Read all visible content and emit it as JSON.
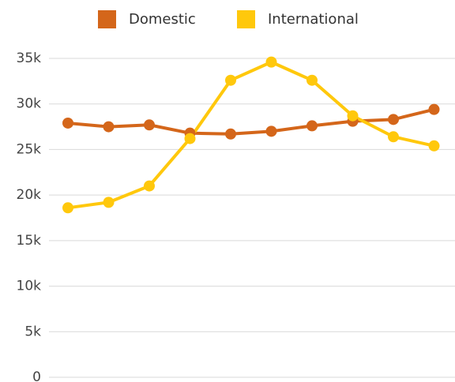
{
  "chart_data": {
    "type": "line",
    "categories": [
      null,
      null,
      null,
      null,
      null,
      null,
      null,
      null,
      null,
      null
    ],
    "series": [
      {
        "name": "Domestic",
        "color": "#d4661a",
        "values": [
          27900,
          27500,
          27700,
          26800,
          26700,
          27000,
          27600,
          28100,
          28300,
          29400
        ]
      },
      {
        "name": "International",
        "color": "#ffc80c",
        "values": [
          18600,
          19200,
          21000,
          26200,
          32600,
          34600,
          32600,
          28700,
          26400,
          25400
        ]
      }
    ],
    "ylim": [
      0,
      35000
    ],
    "yticks": [
      0,
      {
        "value": 5000,
        "label": "5k"
      },
      {
        "value": 10000,
        "label": "10k"
      },
      {
        "value": 15000,
        "label": "15k"
      },
      {
        "value": 20000,
        "label": "20k"
      },
      {
        "value": 25000,
        "label": "25k"
      },
      {
        "value": 30000,
        "label": "30k"
      },
      {
        "value": 35000,
        "label": "35k"
      }
    ],
    "grid": true,
    "legend": "top"
  }
}
